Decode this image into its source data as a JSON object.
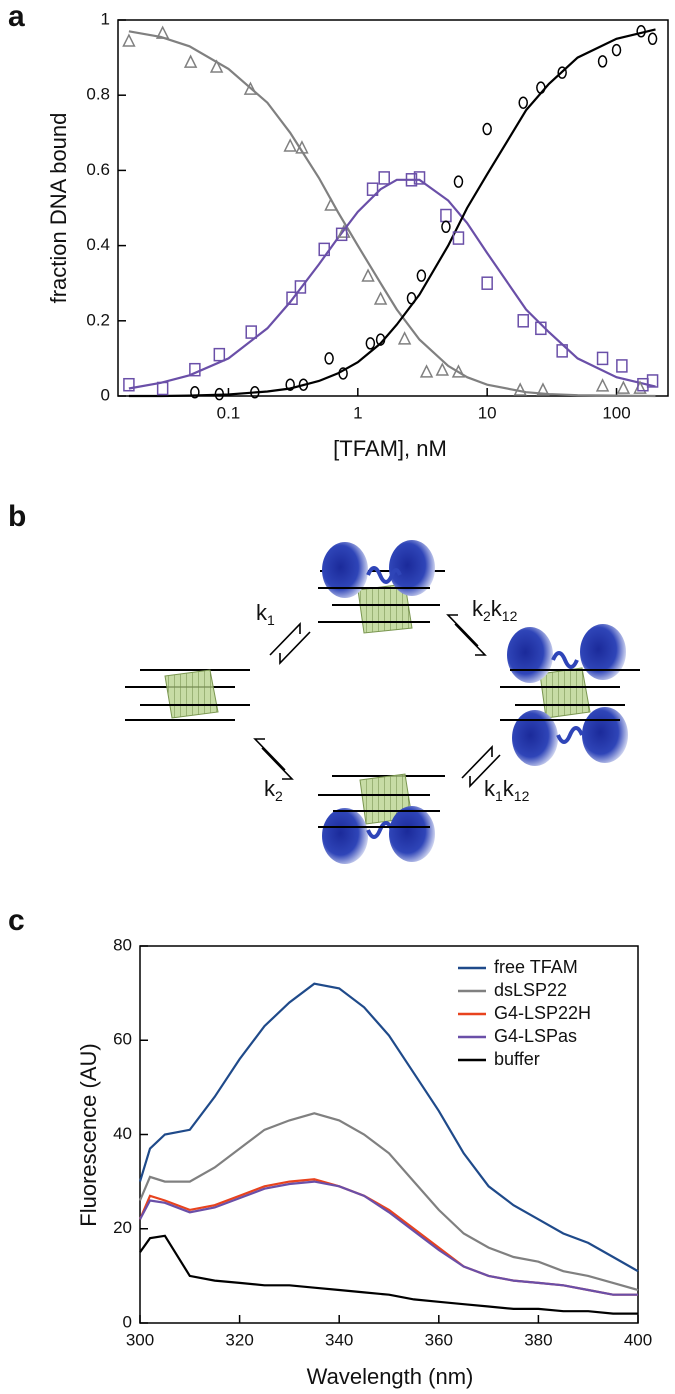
{
  "panel_labels": [
    "a",
    "b",
    "c"
  ],
  "diagram": {
    "rates": [
      {
        "parts": [
          "k",
          "1"
        ]
      },
      {
        "parts": [
          "k",
          "2",
          "k",
          "12"
        ]
      },
      {
        "parts": [
          "k",
          "2"
        ]
      },
      {
        "parts": [
          "k",
          "1",
          "k",
          "12"
        ]
      }
    ]
  },
  "chart_data": [
    {
      "type": "scatter",
      "x_label": "[TFAM], nM",
      "y_label": "fraction DNA bound",
      "xscale": "log",
      "xlim": [
        0.014,
        250
      ],
      "ylim": [
        0,
        1
      ],
      "xticks": [
        0.1,
        1,
        10,
        100
      ],
      "yticks": [
        0,
        0.2,
        0.4,
        0.6,
        0.8,
        1
      ],
      "series": [
        {
          "color": "#808080",
          "marker": "triangle",
          "x": [
            0.017,
            0.031,
            0.051,
            0.081,
            0.148,
            0.3,
            0.37,
            0.62,
            0.78,
            1.2,
            1.5,
            2.3,
            3.4,
            4.5,
            6,
            18,
            27,
            78,
            113,
            152
          ],
          "values": [
            0.944,
            0.965,
            0.888,
            0.875,
            0.816,
            0.665,
            0.66,
            0.508,
            0.436,
            0.319,
            0.258,
            0.152,
            0.064,
            0.069,
            0.064,
            0.016,
            0.016,
            0.027,
            0.021,
            0.021
          ]
        },
        {
          "color": "#6a4fa8",
          "marker": "square",
          "x": [
            0.017,
            0.031,
            0.055,
            0.085,
            0.15,
            0.31,
            0.36,
            0.55,
            0.75,
            1.3,
            1.6,
            2.6,
            3,
            4.8,
            6,
            10,
            19,
            26,
            38,
            78,
            110,
            160,
            190
          ],
          "values": [
            0.03,
            0.02,
            0.07,
            0.11,
            0.17,
            0.26,
            0.29,
            0.39,
            0.43,
            0.55,
            0.58,
            0.575,
            0.58,
            0.48,
            0.42,
            0.3,
            0.2,
            0.18,
            0.12,
            0.1,
            0.08,
            0.03,
            0.04
          ]
        },
        {
          "color": "#000000",
          "marker": "circle",
          "x": [
            0.055,
            0.085,
            0.16,
            0.3,
            0.38,
            0.6,
            0.77,
            1.25,
            1.5,
            2.6,
            3.1,
            4.8,
            6,
            10,
            19,
            26,
            38,
            78,
            100,
            155,
            190
          ],
          "values": [
            0.01,
            0.005,
            0.01,
            0.03,
            0.03,
            0.1,
            0.06,
            0.14,
            0.15,
            0.26,
            0.32,
            0.45,
            0.57,
            0.71,
            0.78,
            0.82,
            0.86,
            0.89,
            0.92,
            0.97,
            0.95
          ]
        }
      ],
      "fits": [
        {
          "color": "#808080",
          "x": [
            0.017,
            0.03,
            0.05,
            0.1,
            0.2,
            0.3,
            0.5,
            0.7,
            1,
            1.5,
            2,
            3,
            5,
            7,
            10,
            20,
            30,
            50,
            100,
            200
          ],
          "values": [
            0.97,
            0.955,
            0.93,
            0.87,
            0.78,
            0.7,
            0.58,
            0.49,
            0.4,
            0.3,
            0.23,
            0.15,
            0.08,
            0.05,
            0.03,
            0.01,
            0.005,
            0.002,
            0.001,
            0
          ]
        },
        {
          "color": "#6a4fa8",
          "x": [
            0.017,
            0.03,
            0.05,
            0.1,
            0.2,
            0.3,
            0.5,
            0.7,
            1,
            1.5,
            2,
            3,
            5,
            7,
            10,
            20,
            30,
            50,
            100,
            200
          ],
          "values": [
            0.02,
            0.035,
            0.055,
            0.1,
            0.18,
            0.25,
            0.35,
            0.42,
            0.49,
            0.55,
            0.575,
            0.575,
            0.52,
            0.46,
            0.38,
            0.23,
            0.17,
            0.1,
            0.05,
            0.025
          ]
        },
        {
          "color": "#000000",
          "x": [
            0.017,
            0.03,
            0.05,
            0.1,
            0.2,
            0.3,
            0.5,
            0.7,
            1,
            1.5,
            2,
            3,
            5,
            7,
            10,
            20,
            30,
            50,
            100,
            200
          ],
          "values": [
            0,
            0,
            0.001,
            0.004,
            0.012,
            0.02,
            0.04,
            0.06,
            0.09,
            0.14,
            0.19,
            0.27,
            0.4,
            0.5,
            0.59,
            0.76,
            0.83,
            0.9,
            0.95,
            0.975
          ]
        }
      ]
    },
    {
      "type": "line",
      "x_label": "Wavelength (nm)",
      "y_label": "Fluorescence (AU)",
      "xlim": [
        300,
        400
      ],
      "ylim": [
        0,
        80
      ],
      "xticks": [
        300,
        320,
        340,
        360,
        380,
        400
      ],
      "yticks": [
        0,
        20,
        40,
        60,
        80
      ],
      "legend": "upper right",
      "x": [
        300,
        302,
        305,
        310,
        315,
        320,
        325,
        330,
        335,
        340,
        345,
        350,
        355,
        360,
        365,
        370,
        375,
        380,
        385,
        390,
        395,
        400
      ],
      "series": [
        {
          "name": "free TFAM",
          "color": "#1f4a8a",
          "values": [
            30,
            37,
            40,
            41,
            48,
            56,
            63,
            68,
            72,
            71,
            67,
            61,
            53,
            45,
            36,
            29,
            25,
            22,
            19,
            17,
            14,
            11
          ]
        },
        {
          "name": "dsLSP22",
          "color": "#808080",
          "values": [
            26,
            31,
            30,
            30,
            33,
            37,
            41,
            43,
            44.5,
            43,
            40,
            36,
            30,
            24,
            19,
            16,
            14,
            13,
            11,
            10,
            8.5,
            7
          ]
        },
        {
          "name": "G4-LSP22H",
          "color": "#e8431e",
          "values": [
            22,
            27,
            26,
            24,
            25,
            27,
            29,
            30,
            30.5,
            29,
            27,
            24,
            20,
            16,
            12,
            10,
            9,
            8.5,
            8,
            7,
            6,
            6
          ]
        },
        {
          "name": "G4-LSPas",
          "color": "#6a4fa8",
          "values": [
            22,
            26,
            25.5,
            23.5,
            24.5,
            26.5,
            28.5,
            29.5,
            30,
            29,
            27,
            23.5,
            19.5,
            15.5,
            12,
            10,
            9,
            8.5,
            8,
            7,
            6,
            6
          ]
        },
        {
          "name": "buffer",
          "color": "#000000",
          "values": [
            15,
            18,
            18.5,
            10,
            9,
            8.5,
            8,
            8,
            7.5,
            7,
            6.5,
            6,
            5,
            4.5,
            4,
            3.5,
            3,
            3,
            2.5,
            2.5,
            2,
            2
          ]
        }
      ]
    }
  ]
}
